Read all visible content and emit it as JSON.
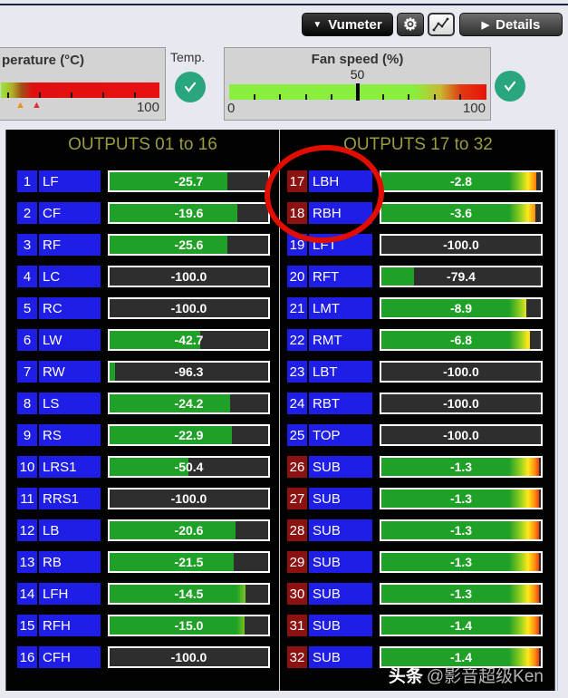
{
  "toolbar": {
    "vumeter_label": "Vumeter",
    "details_label": "Details",
    "dropdown_arrow": "▼",
    "play_arrow": "▶",
    "gear_glyph": "⚙"
  },
  "temperature_panel": {
    "title": "perature (°C)",
    "max_label": "100",
    "caption": "Temp.",
    "status": "ok",
    "warn_marker_low": "▲",
    "warn_marker_high": "▲"
  },
  "fan_panel": {
    "title": "Fan speed (%)",
    "current_value": "50",
    "min_label": "0",
    "max_label": "100",
    "status": "ok"
  },
  "columns": [
    {
      "header": "OUTPUTS 01 to 16",
      "rows": [
        {
          "num": "1",
          "label": "LF",
          "value": "-25.7",
          "num_style": "blue"
        },
        {
          "num": "2",
          "label": "CF",
          "value": "-19.6",
          "num_style": "blue"
        },
        {
          "num": "3",
          "label": "RF",
          "value": "-25.6",
          "num_style": "blue"
        },
        {
          "num": "4",
          "label": "LC",
          "value": "-100.0",
          "num_style": "blue"
        },
        {
          "num": "5",
          "label": "RC",
          "value": "-100.0",
          "num_style": "blue"
        },
        {
          "num": "6",
          "label": "LW",
          "value": "-42.7",
          "num_style": "blue"
        },
        {
          "num": "7",
          "label": "RW",
          "value": "-96.3",
          "num_style": "blue"
        },
        {
          "num": "8",
          "label": "LS",
          "value": "-24.2",
          "num_style": "blue"
        },
        {
          "num": "9",
          "label": "RS",
          "value": "-22.9",
          "num_style": "blue"
        },
        {
          "num": "10",
          "label": "LRS1",
          "value": "-50.4",
          "num_style": "blue"
        },
        {
          "num": "11",
          "label": "RRS1",
          "value": "-100.0",
          "num_style": "blue"
        },
        {
          "num": "12",
          "label": "LB",
          "value": "-20.6",
          "num_style": "blue"
        },
        {
          "num": "13",
          "label": "RB",
          "value": "-21.5",
          "num_style": "blue"
        },
        {
          "num": "14",
          "label": "LFH",
          "value": "-14.5",
          "num_style": "blue"
        },
        {
          "num": "15",
          "label": "RFH",
          "value": "-15.0",
          "num_style": "blue"
        },
        {
          "num": "16",
          "label": "CFH",
          "value": "-100.0",
          "num_style": "blue"
        }
      ]
    },
    {
      "header": "OUTPUTS 17 to 32",
      "rows": [
        {
          "num": "17",
          "label": "LBH",
          "value": "-2.8",
          "num_style": "red"
        },
        {
          "num": "18",
          "label": "RBH",
          "value": "-3.6",
          "num_style": "red"
        },
        {
          "num": "19",
          "label": "LFT",
          "value": "-100.0",
          "num_style": "blue"
        },
        {
          "num": "20",
          "label": "RFT",
          "value": "-79.4",
          "num_style": "blue"
        },
        {
          "num": "21",
          "label": "LMT",
          "value": "-8.9",
          "num_style": "blue"
        },
        {
          "num": "22",
          "label": "RMT",
          "value": "-6.8",
          "num_style": "blue"
        },
        {
          "num": "23",
          "label": "LBT",
          "value": "-100.0",
          "num_style": "blue"
        },
        {
          "num": "24",
          "label": "RBT",
          "value": "-100.0",
          "num_style": "blue"
        },
        {
          "num": "25",
          "label": "TOP",
          "value": "-100.0",
          "num_style": "blue"
        },
        {
          "num": "26",
          "label": "SUB",
          "value": "-1.3",
          "num_style": "red"
        },
        {
          "num": "27",
          "label": "SUB",
          "value": "-1.3",
          "num_style": "red"
        },
        {
          "num": "28",
          "label": "SUB",
          "value": "-1.3",
          "num_style": "red"
        },
        {
          "num": "29",
          "label": "SUB",
          "value": "-1.3",
          "num_style": "red"
        },
        {
          "num": "30",
          "label": "SUB",
          "value": "-1.3",
          "num_style": "red"
        },
        {
          "num": "31",
          "label": "SUB",
          "value": "-1.4",
          "num_style": "red"
        },
        {
          "num": "32",
          "label": "SUB",
          "value": "-1.4",
          "num_style": "red"
        }
      ]
    }
  ],
  "annotation": {
    "shape": "red-ellipse",
    "highlights": "outputs 17 and 18"
  },
  "watermark": {
    "bold_part": "头条",
    "normal_part": "@影音超级Ken"
  },
  "colors": {
    "accent_blue": "#1e1ee6",
    "alert_maroon": "#8c1212",
    "meter_green": "#1fa026",
    "header_olive": "#9c9c3e",
    "check_teal": "#2aa67e",
    "annotation_red": "#e00d00"
  }
}
